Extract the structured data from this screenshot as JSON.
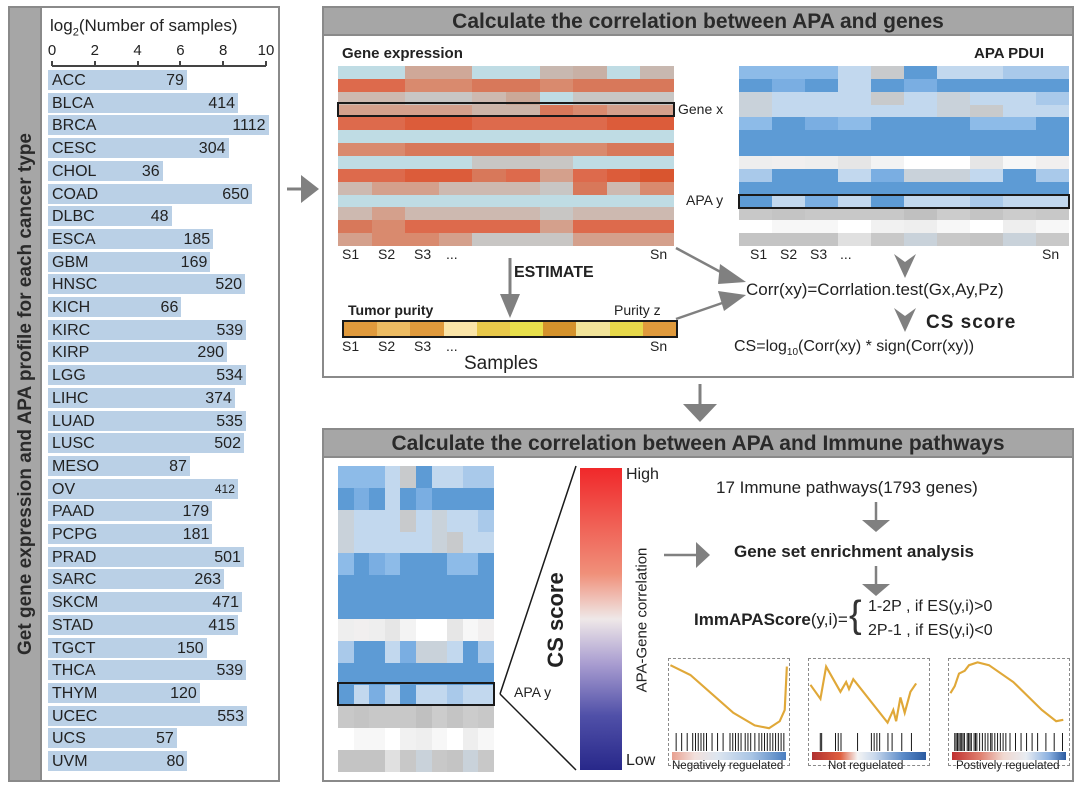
{
  "left_panel": {
    "side_title": "Get gene expression and APA profile for each cancer type",
    "axis_title_prefix": "log",
    "axis_title_sub": "2",
    "axis_title_suffix": "(Number of samples)",
    "ticks": [
      "0",
      "2",
      "4",
      "6",
      "8",
      "10"
    ]
  },
  "chart_data": {
    "type": "bar",
    "orientation": "horizontal",
    "title": "",
    "xlabel": "log2(Number of samples)",
    "xlim": [
      0,
      10
    ],
    "xticks": [
      0,
      2,
      4,
      6,
      8,
      10
    ],
    "categories": [
      "ACC",
      "BLCA",
      "BRCA",
      "CESC",
      "CHOL",
      "COAD",
      "DLBC",
      "ESCA",
      "GBM",
      "HNSC",
      "KICH",
      "KIRC",
      "KIRP",
      "LGG",
      "LIHC",
      "LUAD",
      "LUSC",
      "MESO",
      "OV",
      "PAAD",
      "PCPG",
      "PRAD",
      "SARC",
      "SKCM",
      "STAD",
      "TGCT",
      "THCA",
      "THYM",
      "UCEC",
      "UCS",
      "UVM"
    ],
    "values": [
      79,
      414,
      1112,
      304,
      36,
      650,
      48,
      185,
      169,
      520,
      66,
      539,
      290,
      534,
      374,
      535,
      502,
      87,
      412,
      179,
      181,
      501,
      263,
      471,
      415,
      150,
      539,
      120,
      553,
      57,
      80
    ],
    "value_transform": "log2",
    "bar_color": "#bad0e6"
  },
  "top_panel": {
    "title": "Calculate the correlation between APA and genes",
    "gene_expression_label": "Gene expression",
    "apa_pdui_label": "APA PDUI",
    "gene_x_label": "Gene x",
    "apa_y_label": "APA y",
    "sample_labels": [
      "S1",
      "S2",
      "S3",
      "...",
      "Sn"
    ],
    "estimate_label": "ESTIMATE",
    "tumor_purity_label": "Tumor purity",
    "purity_z_label": "Purity z",
    "samples_label": "Samples",
    "corr_formula": "Corr(xy)=Corrlation.test(Gx,Ay,Pz)",
    "cs_score_label": "CS score",
    "cs_formula_prefix": "CS=log",
    "cs_formula_sub": "10",
    "cs_formula_suffix": "(Corr(xy) * sign(Corr(xy))",
    "gene_heatmap": [
      [
        "#bfdce4",
        "#bfdce4",
        "#cfa898",
        "#cfa898",
        "#bfdce4",
        "#bfdce4",
        "#c8b8b0",
        "#c8b0a5",
        "#bfdce4",
        "#c8b8b0"
      ],
      [
        "#dd6a4c",
        "#dd6a4c",
        "#d98a6e",
        "#d98a6e",
        "#d8785a",
        "#d8785a",
        "#d98a6e",
        "#d8785a",
        "#d8785a",
        "#d8785a"
      ],
      [
        "#cdb9b0",
        "#cdb9b0",
        "#c8c6c4",
        "#c8c6c4",
        "#cdb9b0",
        "#cba898",
        "#bfdce4",
        "#c8c6c4",
        "#c8c6c4",
        "#c8c6c4"
      ],
      [
        "#d4a08c",
        "#d4a08c",
        "#d4a08c",
        "#d4a08c",
        "#ccb4a8",
        "#ccb4a8",
        "#d8785a",
        "#d98a6e",
        "#d4a08c",
        "#d4a08c"
      ],
      [
        "#dd6a4c",
        "#dd6a4c",
        "#dc5c3a",
        "#dc5c3a",
        "#dd6a4c",
        "#dd6a4c",
        "#dd6a4c",
        "#dd6a4c",
        "#dc5c3a",
        "#dc5c3a"
      ],
      [
        "#bfdce4",
        "#bfdce4",
        "#bfdce4",
        "#bfdce4",
        "#bfdce4",
        "#bfdce4",
        "#bfdce4",
        "#bfdce4",
        "#bfdce4",
        "#bfdce4"
      ],
      [
        "#d98a6e",
        "#d98a6e",
        "#d8785a",
        "#d8785a",
        "#d8785a",
        "#d8785a",
        "#d98a6e",
        "#d98a6e",
        "#d8785a",
        "#d8785a"
      ],
      [
        "#bfdce4",
        "#bfdce4",
        "#bfdce4",
        "#bfdce4",
        "#c8c6c4",
        "#c8c6c4",
        "#c8c6c4",
        "#bfdce4",
        "#bfdce4",
        "#bfdce4"
      ],
      [
        "#dd6a4c",
        "#dd6a4c",
        "#dc5c3a",
        "#dc5c3a",
        "#d8785a",
        "#dd6a4c",
        "#d4a08c",
        "#dd6a4c",
        "#dc5c3a",
        "#d9552f"
      ],
      [
        "#cdb9b0",
        "#d4a08c",
        "#d4a08c",
        "#cdb9b0",
        "#cdb9b0",
        "#cdb9b0",
        "#c8c6c4",
        "#d8785a",
        "#cdb9b0",
        "#d98a6e"
      ],
      [
        "#bfdce4",
        "#bfdce4",
        "#bfdce4",
        "#bfdce4",
        "#bfdce4",
        "#bfdce4",
        "#bfdce4",
        "#bfdce4",
        "#bfdce4",
        "#bfdce4"
      ],
      [
        "#cdb9b0",
        "#d4a08c",
        "#cdb9b0",
        "#cdb9b0",
        "#cdb9b0",
        "#cdb9b0",
        "#c8c6c4",
        "#cdb9b0",
        "#cdb9b0",
        "#cdb9b0"
      ],
      [
        "#d8785a",
        "#d98a6e",
        "#dd6a4c",
        "#dd6a4c",
        "#dd6a4c",
        "#dd6a4c",
        "#d4a08c",
        "#dd6a4c",
        "#dd6a4c",
        "#dd6a4c"
      ],
      [
        "#d4a08c",
        "#d98a6e",
        "#d98a6e",
        "#d4a08c",
        "#c8c6c4",
        "#c8c6c4",
        "#c8c6c4",
        "#d4a08c",
        "#d4a08c",
        "#d4a08c"
      ]
    ],
    "apa_heatmap": [
      [
        "#8dbbe8",
        "#8dbbe8",
        "#8dbbe8",
        "#c2d8ee",
        "#c8cacc",
        "#5d9bd5",
        "#c2d8ee",
        "#c2d8ee",
        "#a9c9ea",
        "#a9c9ea"
      ],
      [
        "#5d9bd5",
        "#7aaee2",
        "#5d9bd5",
        "#c2d8ee",
        "#5d9bd5",
        "#7aaee2",
        "#5d9bd5",
        "#5d9bd5",
        "#5d9bd5",
        "#5d9bd5"
      ],
      [
        "#c9d2da",
        "#c2d8ee",
        "#c2d8ee",
        "#c2d8ee",
        "#c8cacc",
        "#c2d8ee",
        "#c9d2da",
        "#c2d8ee",
        "#c2d8ee",
        "#a9c9ea"
      ],
      [
        "#c9d2da",
        "#c2d8ee",
        "#c2d8ee",
        "#c2d8ee",
        "#c2d8ee",
        "#c2d8ee",
        "#c9d2da",
        "#c8cacc",
        "#c2d8ee",
        "#c2d8ee"
      ],
      [
        "#8dbbe8",
        "#5d9bd5",
        "#7aaee2",
        "#8dbbe8",
        "#5d9bd5",
        "#5d9bd5",
        "#5d9bd5",
        "#8dbbe8",
        "#8dbbe8",
        "#5d9bd5"
      ],
      [
        "#5d9bd5",
        "#5d9bd5",
        "#5d9bd5",
        "#5d9bd5",
        "#5d9bd5",
        "#5d9bd5",
        "#5d9bd5",
        "#5d9bd5",
        "#5d9bd5",
        "#5d9bd5"
      ],
      [
        "#5d9bd5",
        "#5d9bd5",
        "#5d9bd5",
        "#5d9bd5",
        "#5d9bd5",
        "#5d9bd5",
        "#5d9bd5",
        "#5d9bd5",
        "#5d9bd5",
        "#5d9bd5"
      ],
      [
        "#eeeeee",
        "#f1efef",
        "#eeeeee",
        "#e6e6e6",
        "#f3f3f3",
        "#ffffff",
        "#ffffff",
        "#e6e6e6",
        "#f7f7f7",
        "#f1efef"
      ],
      [
        "#a9c9ea",
        "#5d9bd5",
        "#5d9bd5",
        "#c2d8ee",
        "#7aaee2",
        "#c9d2da",
        "#c9d2da",
        "#c2d8ee",
        "#5d9bd5",
        "#a9c9ea"
      ],
      [
        "#5d9bd5",
        "#5d9bd5",
        "#5d9bd5",
        "#5d9bd5",
        "#5d9bd5",
        "#5d9bd5",
        "#5d9bd5",
        "#5d9bd5",
        "#5d9bd5",
        "#5d9bd5"
      ],
      [
        "#5d9bd5",
        "#c2d8ee",
        "#7aaee2",
        "#c2d8ee",
        "#5d9bd5",
        "#c2d8ee",
        "#c2d8ee",
        "#a9c9ea",
        "#c2d8ee",
        "#c2d8ee"
      ],
      [
        "#c8c8c8",
        "#c4c4c4",
        "#c8c8c8",
        "#c8c8c8",
        "#c8c8c8",
        "#c0c0c0",
        "#cccccc",
        "#c4c4c4",
        "#cccccc",
        "#c8c8c8"
      ],
      [
        "#ffffff",
        "#f7f7f7",
        "#f7f7f7",
        "#ffffff",
        "#f1f1f1",
        "#eeeeee",
        "#f7f7f7",
        "#ffffff",
        "#eeeeee",
        "#f7f7f7"
      ],
      [
        "#c4c4c4",
        "#c4c4c4",
        "#c4c4c4",
        "#e0e0e0",
        "#c8c8c8",
        "#c9d2da",
        "#c8c8c8",
        "#c4c4c4",
        "#c9d2da",
        "#c8c8c8"
      ]
    ],
    "purity_colors": [
      "#e09a3c",
      "#ecbb62",
      "#e09a3c",
      "#fbe5a8",
      "#e8c84a",
      "#e8e04c",
      "#d4922c",
      "#f2e49a",
      "#e6d84a",
      "#e09a3c"
    ]
  },
  "bottom_panel": {
    "title": "Calculate the correlation between APA and Immune pathways",
    "apa_y_label": "APA y",
    "cs_score_label": "CS score",
    "colorbar_axis_label": "APA-Gene correlation",
    "high_label": "High",
    "low_label": "Low",
    "pathways_label": "17 Immune pathways(1793 genes)",
    "gsea_label": "Gene set enrichment analysis",
    "score_label_bold": "ImmAPAScore",
    "score_label_args": "(y,i)=",
    "case_1": "1-2P , if ES(y,i)>0",
    "case_2": "2P-1 , if ES(y,i)<0",
    "gsea_plots": [
      {
        "label": "Negatively reguelated"
      },
      {
        "label": "Not reguelated"
      },
      {
        "label": "Postively reguelated"
      }
    ]
  }
}
